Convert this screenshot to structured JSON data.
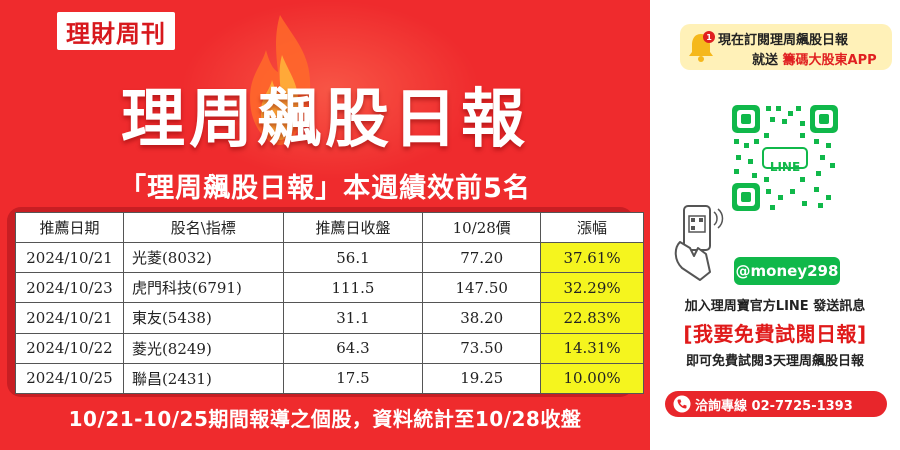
{
  "header": {
    "logo_text": "理財周刊",
    "main_title": "理周飆股日報",
    "subtitle": "「理周飆股日報」本週績效前5名"
  },
  "table": {
    "headers": [
      "推薦日期",
      "股名\\指標",
      "推薦日收盤",
      "10/28價",
      "漲幅"
    ],
    "rows": [
      [
        "2024/10/21",
        "光菱(8032)",
        "56.1",
        "77.20",
        "37.61%"
      ],
      [
        "2024/10/23",
        "虎門科技(6791)",
        "111.5",
        "147.50",
        "32.29%"
      ],
      [
        "2024/10/21",
        "東友(5438)",
        "31.1",
        "38.20",
        "22.83%"
      ],
      [
        "2024/10/22",
        "菱光(8249)",
        "64.3",
        "73.50",
        "14.31%"
      ],
      [
        "2024/10/25",
        "聯昌(2431)",
        "17.5",
        "19.25",
        "10.00%"
      ]
    ]
  },
  "footnote": "10/21-10/25期間報導之個股，資料統計至10/28收盤",
  "sidebar": {
    "promo_line1": "現在訂閱理周飆股日報",
    "promo_line2_prefix": "就送",
    "promo_line2_highlight": "籌碼大股東APP",
    "qr_label": "LINE",
    "line_id": "@money298",
    "join_text": "加入理周寶官方LINE 發送訊息",
    "cta_text": "[我要免費試閱日報]",
    "trial_text": "即可免費試閱3天理周飆股日報",
    "hotline_text": "洽詢專線 02-7725-1393"
  },
  "colors": {
    "brand_red": "#ef2b2d",
    "highlight_yellow": "#f5f51e",
    "line_green": "#10b84a"
  }
}
